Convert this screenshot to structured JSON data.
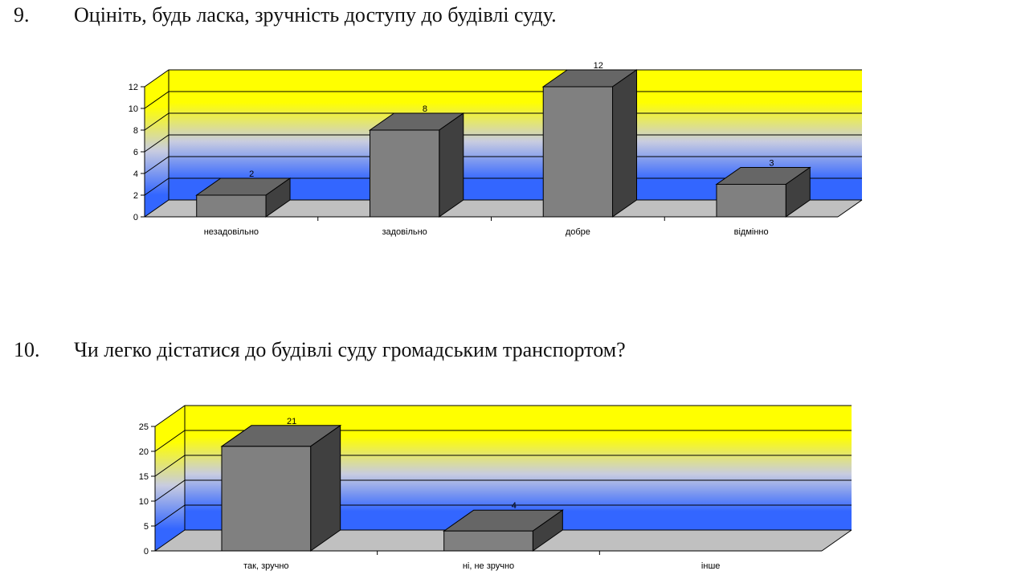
{
  "questions": [
    {
      "number": "9.",
      "text": "Оцініть, будь ласка, зручність доступу до будівлі суду."
    },
    {
      "number": "10.",
      "text": "Чи легко дістатися до будівлі суду громадським транспортом?"
    }
  ],
  "chart_data": [
    {
      "type": "bar",
      "style": "3d-column",
      "categories": [
        "незадовільно",
        "задовільно",
        "добре",
        "відмінно"
      ],
      "values": [
        2,
        8,
        12,
        3
      ],
      "data_labels": [
        "2",
        "8",
        "12",
        "3"
      ],
      "ylim": [
        0,
        12
      ],
      "y_ticks": [
        "0",
        "2",
        "4",
        "6",
        "8",
        "10",
        "12"
      ],
      "grid": true,
      "legend": "none",
      "colors": {
        "bar_front": "#808080",
        "bar_top": "#666666",
        "bar_side": "#404040",
        "wall_top": "#ffff00",
        "wall_bottom": "#3366ff",
        "floor": "#c0c0c0"
      }
    },
    {
      "type": "bar",
      "style": "3d-column",
      "categories": [
        "так, зручно",
        "ні, не зручно",
        "інше"
      ],
      "values": [
        21,
        4,
        0
      ],
      "data_labels": [
        "21",
        "4",
        ""
      ],
      "ylim": [
        0,
        25
      ],
      "y_ticks": [
        "0",
        "5",
        "10",
        "15",
        "20",
        "25"
      ],
      "grid": true,
      "legend": "none",
      "colors": {
        "bar_front": "#808080",
        "bar_top": "#666666",
        "bar_side": "#404040",
        "wall_top": "#ffff00",
        "wall_bottom": "#3366ff",
        "floor": "#c0c0c0"
      }
    }
  ]
}
